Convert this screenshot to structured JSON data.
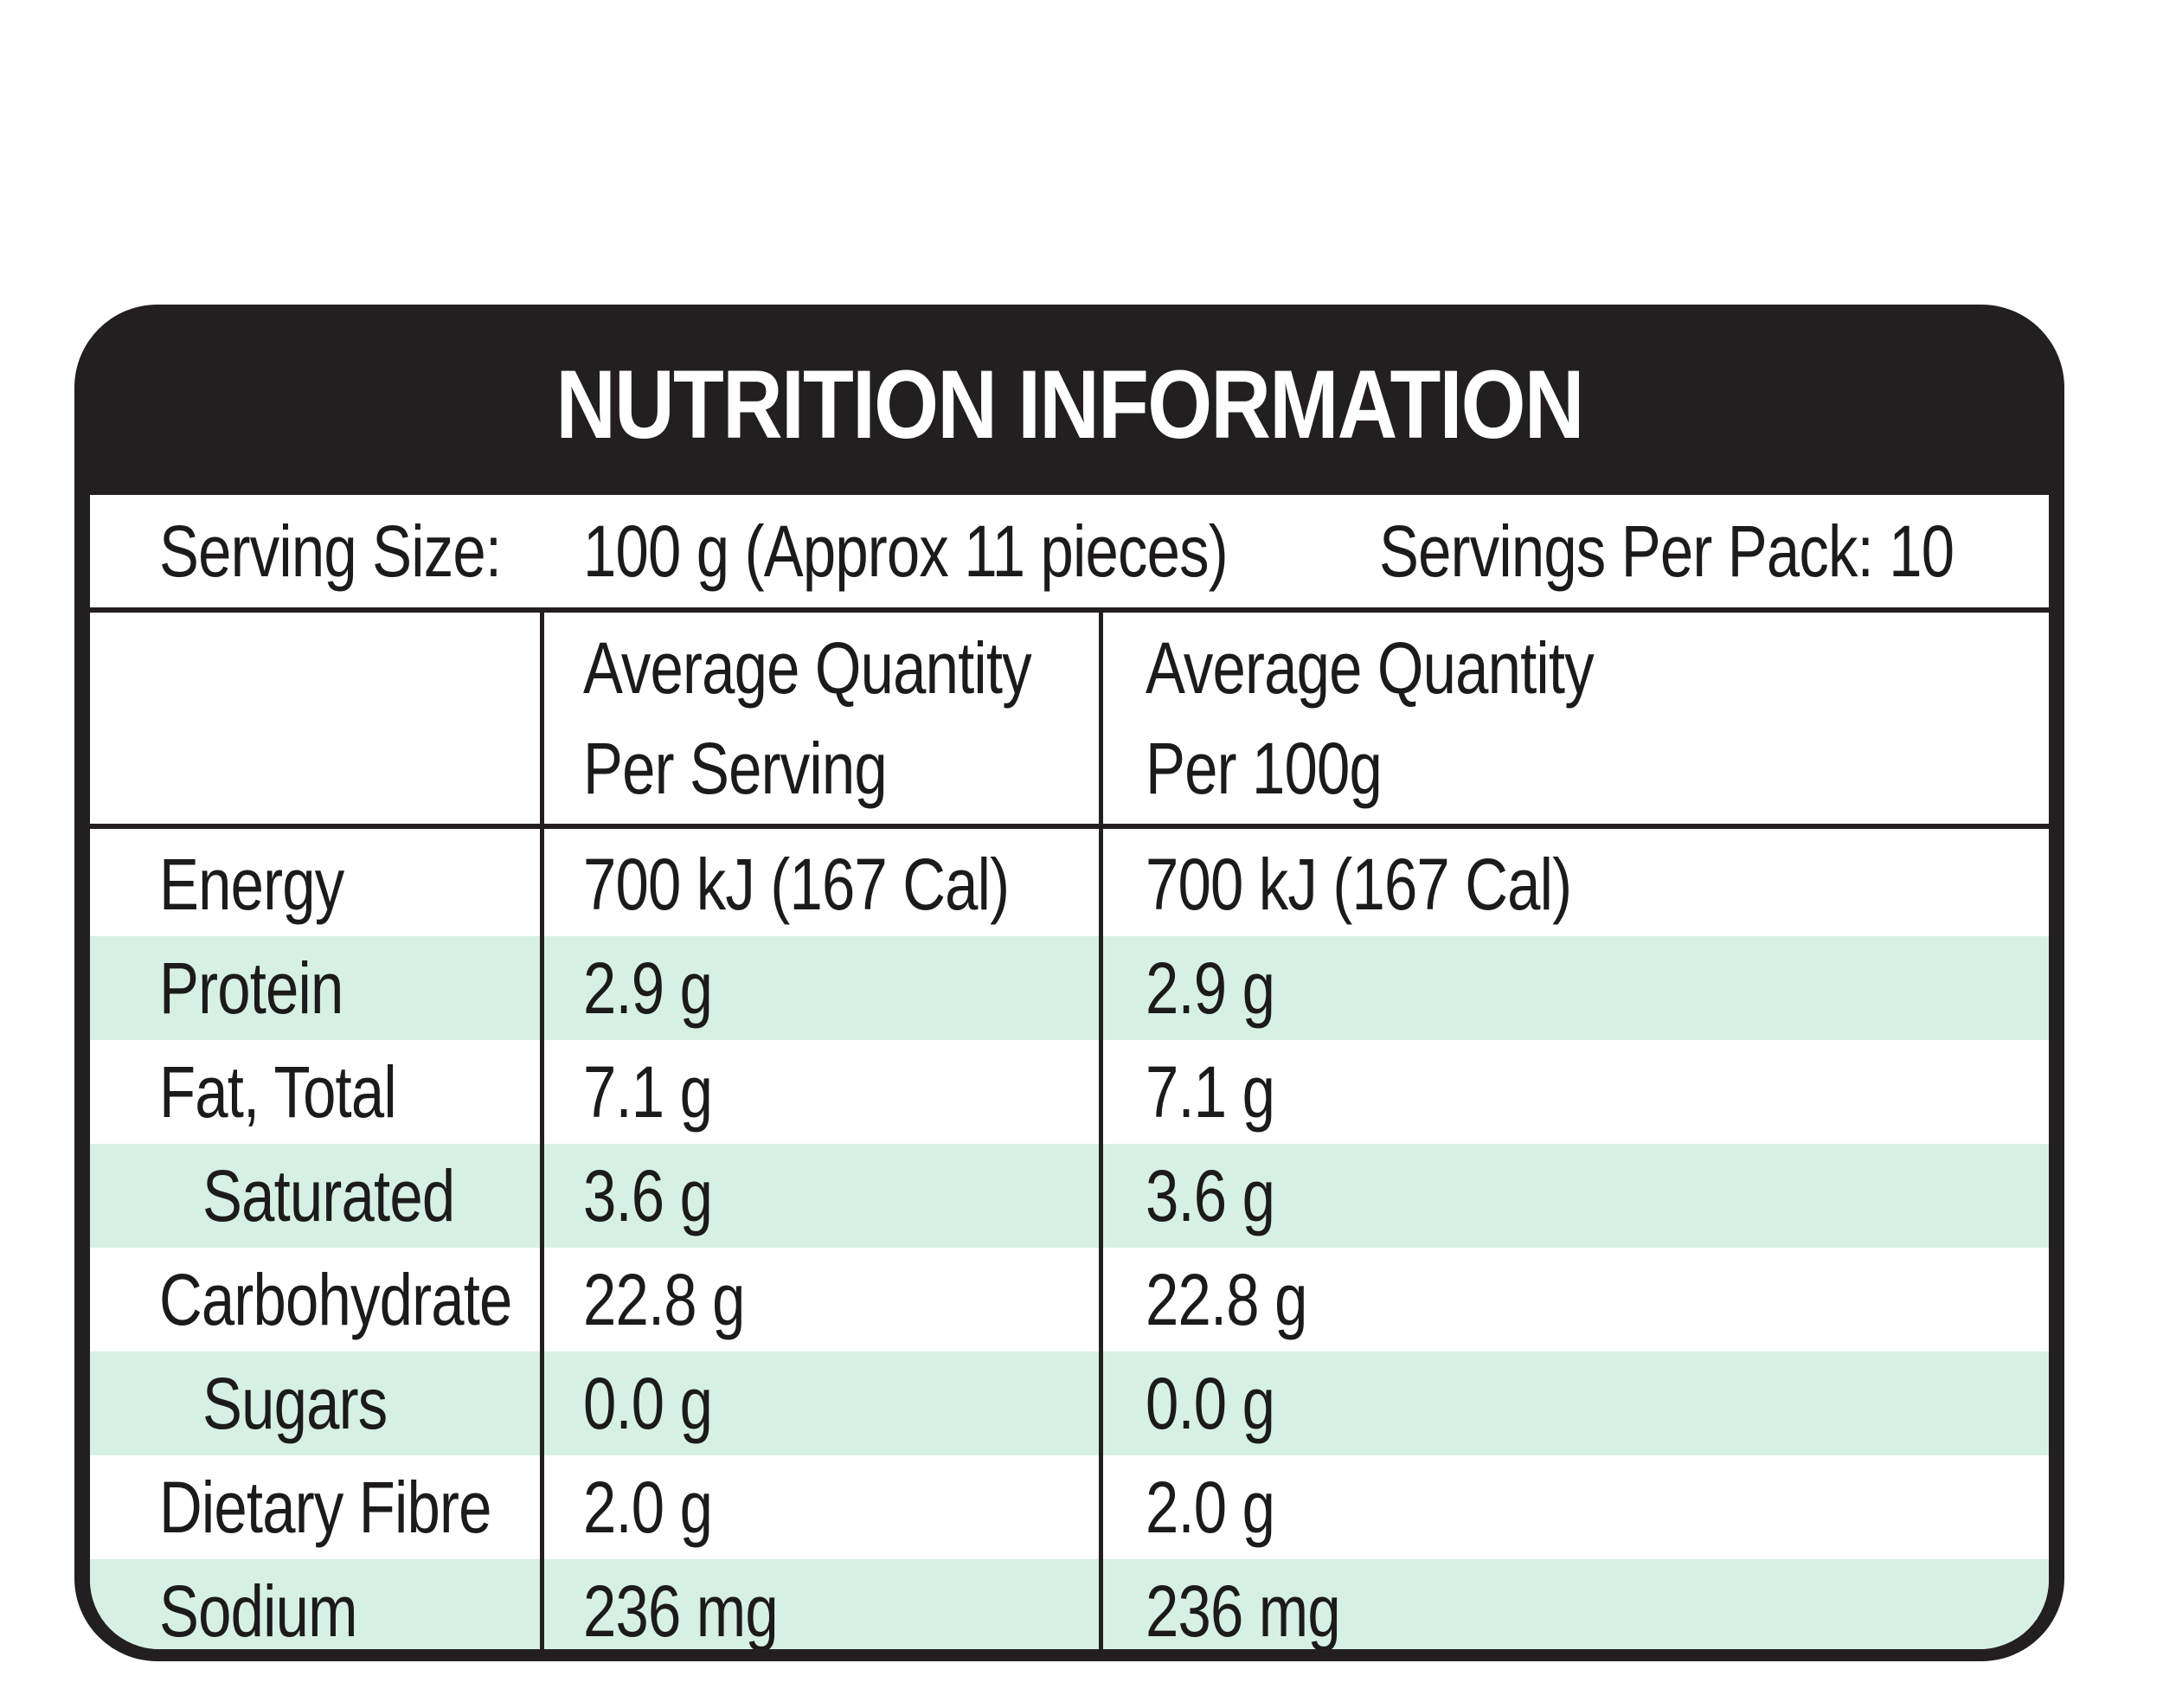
{
  "title": "NUTRITION INFORMATION",
  "serving": {
    "size_label": "Serving Size:",
    "size_value": "100 g (Approx 11 pieces)",
    "per_pack": "Servings Per Pack: 10"
  },
  "columns": {
    "per_serving_line1": "Average Quantity",
    "per_serving_line2": "Per Serving",
    "per_100g_line1": "Average Quantity",
    "per_100g_line2": "Per 100g"
  },
  "rows": [
    {
      "name": "Energy",
      "per_serving": "700 kJ (167 Cal)",
      "per_100g": "700 kJ (167 Cal)"
    },
    {
      "name": "Protein",
      "per_serving": "2.9 g",
      "per_100g": "2.9 g"
    },
    {
      "name": "Fat, Total",
      "per_serving": "7.1 g",
      "per_100g": "7.1 g"
    },
    {
      "name": "Saturated",
      "per_serving": "3.6 g",
      "per_100g": "3.6 g"
    },
    {
      "name": "Carbohydrate",
      "per_serving": "22.8 g",
      "per_100g": "22.8 g"
    },
    {
      "name": "Sugars",
      "per_serving": "0.0 g",
      "per_100g": "0.0 g"
    },
    {
      "name": "Dietary Fibre",
      "per_serving": "2.0 g",
      "per_100g": "2.0 g"
    },
    {
      "name": "Sodium",
      "per_serving": "236 mg",
      "per_100g": "236 mg"
    }
  ],
  "colors": {
    "panel": "#231f20",
    "row_shade": "#d6f0e4",
    "text": "#1c1a1b",
    "title_text": "#ffffff"
  }
}
